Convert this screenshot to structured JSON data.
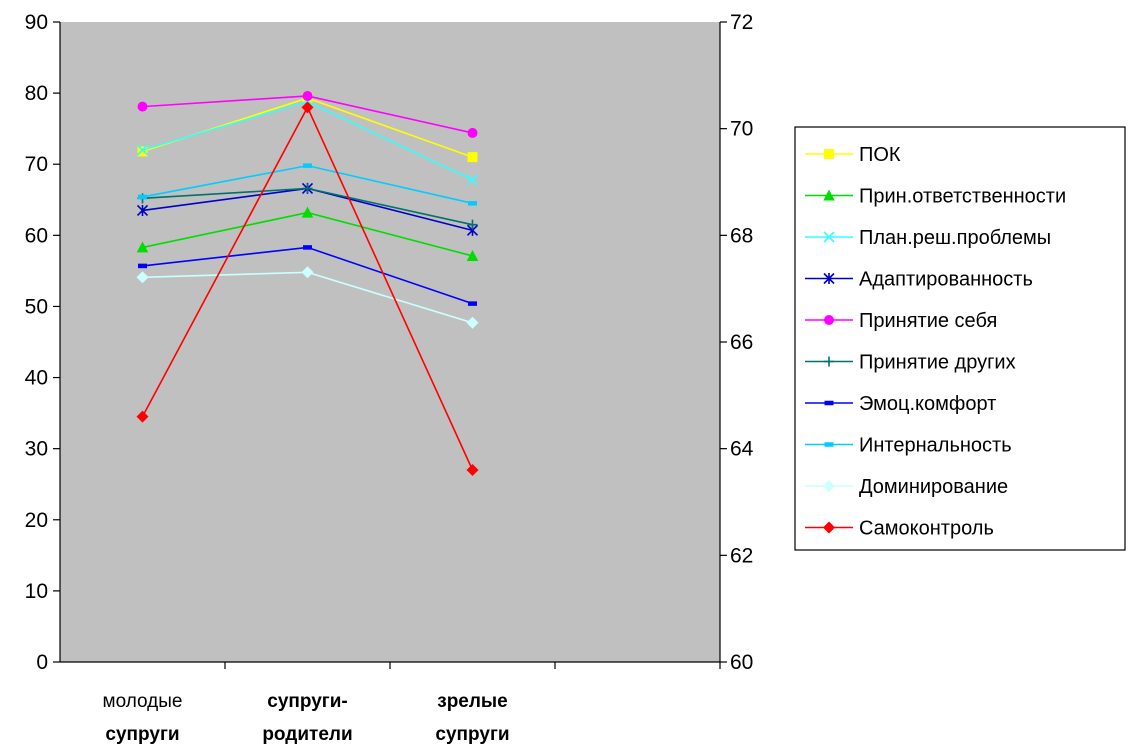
{
  "chart_data": {
    "type": "line",
    "categories": [
      {
        "lines": [
          "молодые",
          "супруги"
        ],
        "bold": [
          false,
          true
        ]
      },
      {
        "lines": [
          "супруги-",
          "родители"
        ],
        "bold": [
          true,
          true
        ]
      },
      {
        "lines": [
          "зрелые",
          "супруги"
        ],
        "bold": [
          true,
          true
        ]
      }
    ],
    "y_left": {
      "ylim": [
        0,
        90
      ],
      "ticks": [
        0,
        10,
        20,
        30,
        40,
        50,
        60,
        70,
        80,
        90
      ]
    },
    "y_right": {
      "ylim": [
        60,
        72
      ],
      "ticks": [
        60,
        62,
        64,
        66,
        68,
        70,
        72
      ]
    },
    "plot_background": "#c0c0c0",
    "legend_placement": "right",
    "series": [
      {
        "name": "ПОК",
        "values": [
          71.8,
          79.3,
          71.0
        ],
        "axis": "left",
        "color": "#ffff00",
        "marker": "square"
      },
      {
        "name": "Прин.ответственности",
        "values": [
          58.3,
          63.2,
          57.1
        ],
        "axis": "left",
        "color": "#00dd00",
        "marker": "triangle"
      },
      {
        "name": "План.реш.проблемы",
        "values": [
          72.0,
          78.8,
          67.8
        ],
        "axis": "left",
        "color": "#33ffff",
        "marker": "x"
      },
      {
        "name": "Адаптированность",
        "values": [
          63.5,
          66.6,
          60.7
        ],
        "axis": "left",
        "color": "#0000cc",
        "marker": "star"
      },
      {
        "name": "Принятие себя",
        "values": [
          78.1,
          79.6,
          74.4
        ],
        "axis": "left",
        "color": "#ff00ff",
        "marker": "circle"
      },
      {
        "name": "Принятие других",
        "values": [
          65.2,
          66.6,
          61.5
        ],
        "axis": "left",
        "color": "#007070",
        "marker": "plus"
      },
      {
        "name": "Эмоц.комфорт",
        "values": [
          55.7,
          58.3,
          50.4
        ],
        "axis": "left",
        "color": "#0000ff",
        "marker": "dash"
      },
      {
        "name": "Интернальность",
        "values": [
          65.4,
          69.8,
          64.5
        ],
        "axis": "left",
        "color": "#00ccff",
        "marker": "dash"
      },
      {
        "name": "Доминирование",
        "values": [
          54.1,
          54.8,
          47.7
        ],
        "axis": "left",
        "color": "#ccffff",
        "marker": "diamond"
      },
      {
        "name": "Самоконтроль",
        "values": [
          64.6,
          70.4,
          63.6
        ],
        "axis": "right",
        "color": "#ff0000",
        "marker": "diamond"
      }
    ]
  }
}
